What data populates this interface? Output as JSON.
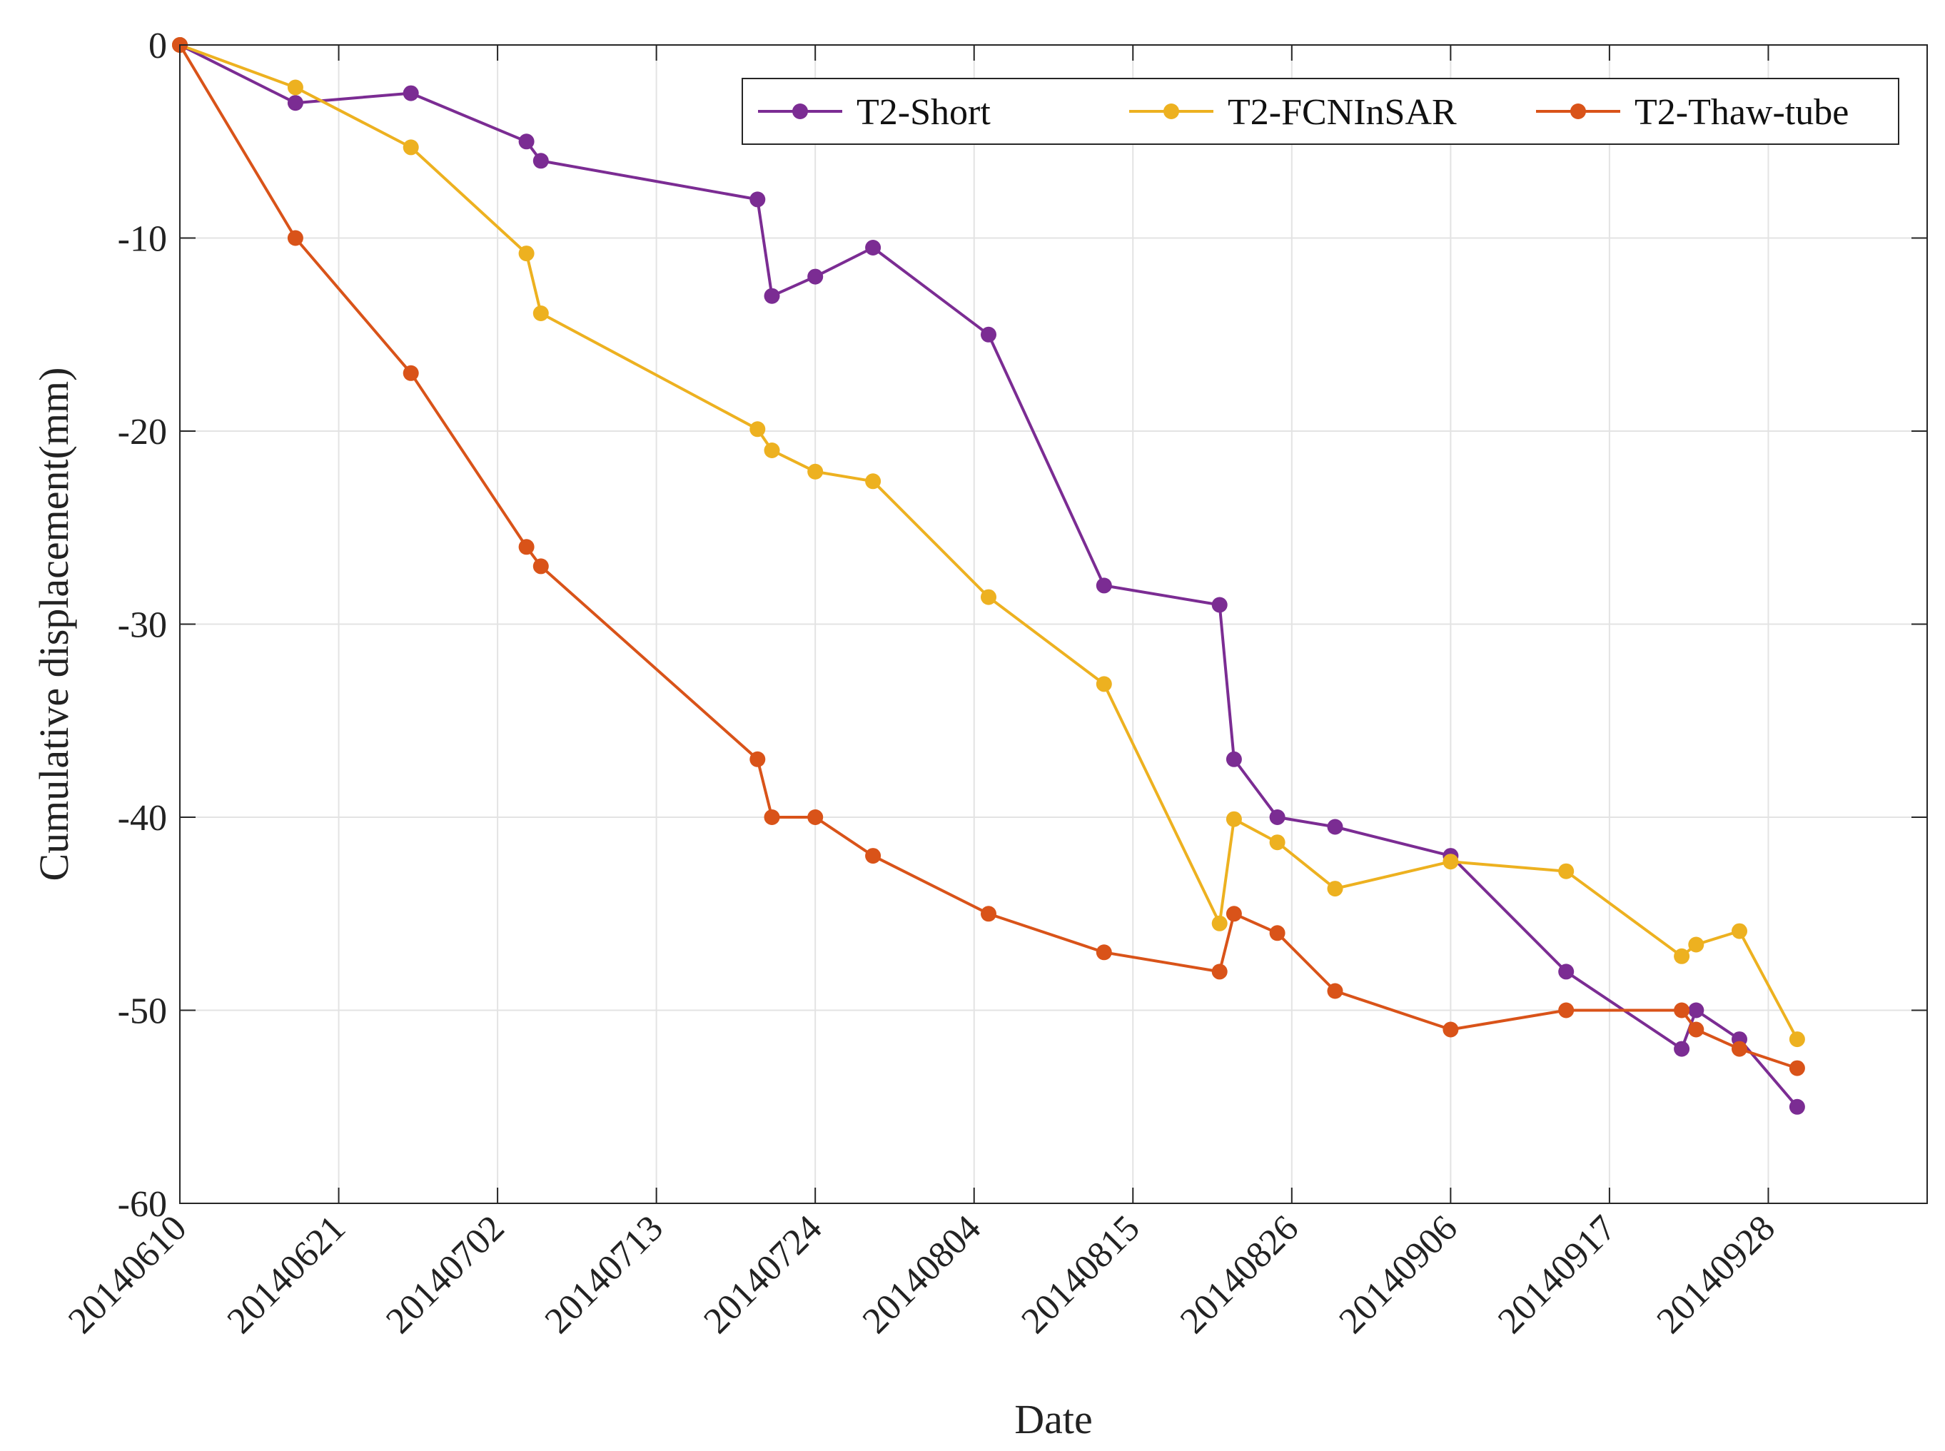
{
  "chart_data": {
    "type": "line",
    "title": "",
    "xlabel": "Date",
    "ylabel": "Cumulative displacement(mm)",
    "x_tick_labels": [
      "20140610",
      "20140621",
      "20140702",
      "20140713",
      "20140724",
      "20140804",
      "20140815",
      "20140826",
      "20140906",
      "20140917",
      "20140928"
    ],
    "x_tick_days": [
      0,
      11,
      22,
      33,
      44,
      55,
      66,
      77,
      88,
      99,
      110
    ],
    "xlim": [
      0,
      121
    ],
    "y_tick_labels": [
      "0",
      "-10",
      "-20",
      "-30",
      "-40",
      "-50",
      "-60"
    ],
    "y_tick_values": [
      0,
      -10,
      -20,
      -30,
      -40,
      -50,
      -60
    ],
    "ylim": [
      -60,
      0
    ],
    "grid": true,
    "legend_position": "top-right",
    "x_unit": "days since 20140610",
    "x": [
      0,
      8,
      16,
      24,
      25,
      40,
      41,
      44,
      48,
      56,
      64,
      72,
      73,
      76,
      80,
      88,
      96,
      104,
      105,
      108,
      112
    ],
    "series": [
      {
        "name": "T2-Short",
        "color": "#7B2C93",
        "values": [
          0,
          -3,
          -2.5,
          -5,
          -6,
          -8,
          -13,
          -12,
          -10.5,
          -15,
          -28,
          -29,
          -37,
          -40,
          -40.5,
          -42,
          -48,
          -52,
          -50,
          -51.5,
          -55
        ]
      },
      {
        "name": "T2-FCNInSAR",
        "color": "#EDB120",
        "values": [
          0,
          -2.2,
          -5.3,
          -10.8,
          -13.9,
          -19.9,
          -21,
          -22.1,
          -22.6,
          -28.6,
          -33.1,
          -45.5,
          -40.1,
          -41.3,
          -43.7,
          -42.3,
          -42.8,
          -47.2,
          -46.6,
          -45.9,
          -51.5
        ]
      },
      {
        "name": "T2-Thaw-tube",
        "color": "#D95319",
        "values": [
          0,
          -10,
          -17,
          -26,
          -27,
          -37,
          -40,
          -40,
          -42,
          -45,
          -47,
          -48,
          -45,
          -46,
          -49,
          -51,
          -50,
          -50,
          -51,
          -52,
          -53
        ]
      }
    ]
  }
}
